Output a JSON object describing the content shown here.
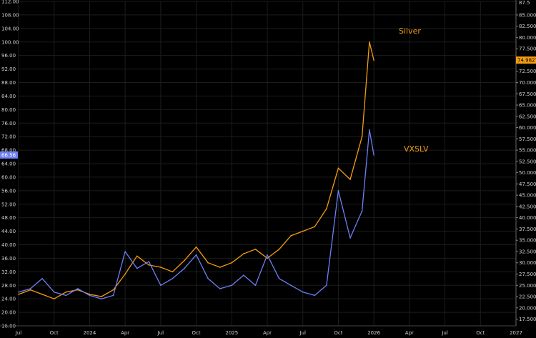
{
  "chart_data": {
    "type": "line",
    "grid": true,
    "left_axis": {
      "ticks": [
        "16.00",
        "20.00",
        "24.00",
        "28.00",
        "32.00",
        "36.00",
        "40.00",
        "44.00",
        "48.00",
        "52.00",
        "56.00",
        "60.00",
        "64.00",
        "68.00",
        "72.00",
        "76.00",
        "80.00",
        "84.00",
        "88.00",
        "92.00",
        "96.00",
        "100.00",
        "104.00",
        "108.00",
        "112.00"
      ],
      "ylim": [
        16,
        112
      ]
    },
    "right_axis": {
      "ticks": [
        "17.5000",
        "20.0000",
        "22.5000",
        "25.0000",
        "27.5000",
        "30.0000",
        "32.5000",
        "35.0000",
        "37.5000",
        "40.0000",
        "42.5000",
        "45.0000",
        "47.5000",
        "50.0000",
        "52.5000",
        "55.0000",
        "57.5000",
        "60.0000",
        "62.5000",
        "65.0000",
        "67.5000",
        "70.0000",
        "72.5000",
        "75.0000",
        "77.5000",
        "80.0000",
        "82.5000",
        "85.0000"
      ],
      "top_label": "87.5",
      "ylim": [
        16,
        88
      ]
    },
    "x_axis": {
      "ticks": [
        "Jul",
        "Oct",
        "2024",
        "Apr",
        "Jul",
        "Oct",
        "2025",
        "Apr",
        "Jul",
        "Oct",
        "2026",
        "Apr",
        "Jul",
        "Oct",
        "2027"
      ],
      "range": [
        "2023-07",
        "2027-01"
      ]
    },
    "series": [
      {
        "name": "Silver",
        "axis": "right",
        "color": "#f39c12",
        "last_value_label": "74.9827",
        "x": [
          "2023-07",
          "2023-08",
          "2023-09",
          "2023-10",
          "2023-11",
          "2023-12",
          "2024-01",
          "2024-02",
          "2024-03",
          "2024-04",
          "2024-05",
          "2024-06",
          "2024-07",
          "2024-08",
          "2024-09",
          "2024-10",
          "2024-11",
          "2024-12",
          "2025-01",
          "2025-02",
          "2025-03",
          "2025-04",
          "2025-05",
          "2025-06",
          "2025-07",
          "2025-08",
          "2025-09",
          "2025-10",
          "2025-11",
          "2025-12",
          "2025-12-20",
          "2026-01"
        ],
        "values": [
          23.0,
          24.0,
          23.0,
          22.0,
          23.5,
          24.0,
          23.0,
          22.5,
          24.0,
          27.5,
          31.5,
          29.5,
          29.0,
          28.0,
          30.5,
          33.5,
          30.0,
          29.0,
          30.0,
          32.0,
          33.0,
          31.0,
          33.0,
          36.0,
          37.0,
          38.0,
          42.0,
          51.0,
          48.5,
          58.0,
          79.0,
          74.98
        ]
      },
      {
        "name": "VXSLV",
        "axis": "left",
        "color": "#6f7ff5",
        "last_value_label": "66.56",
        "x": [
          "2023-07",
          "2023-08",
          "2023-09",
          "2023-10",
          "2023-11",
          "2023-12",
          "2024-01",
          "2024-02",
          "2024-03",
          "2024-04",
          "2024-05",
          "2024-06",
          "2024-07",
          "2024-08",
          "2024-09",
          "2024-10",
          "2024-11",
          "2024-12",
          "2025-01",
          "2025-02",
          "2025-03",
          "2025-04",
          "2025-05",
          "2025-06",
          "2025-07",
          "2025-08",
          "2025-09",
          "2025-10",
          "2025-11",
          "2025-12",
          "2025-12-20",
          "2026-01"
        ],
        "values": [
          26.0,
          27.0,
          30.0,
          26.0,
          25.0,
          27.0,
          25.0,
          24.0,
          25.0,
          38.0,
          33.0,
          35.0,
          28.0,
          30.0,
          33.0,
          37.0,
          30.0,
          27.0,
          28.0,
          31.0,
          28.0,
          37.0,
          30.0,
          28.0,
          26.0,
          25.0,
          28.0,
          56.0,
          42.0,
          50.0,
          74.0,
          66.56
        ]
      }
    ],
    "annotations": [
      "Silver",
      "VXSLV"
    ]
  }
}
